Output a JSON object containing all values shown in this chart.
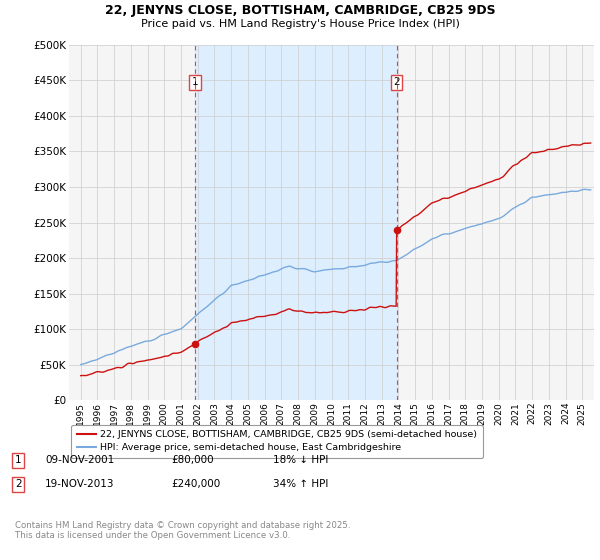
{
  "title1": "22, JENYNS CLOSE, BOTTISHAM, CAMBRIDGE, CB25 9DS",
  "title2": "Price paid vs. HM Land Registry's House Price Index (HPI)",
  "ylim": [
    0,
    500000
  ],
  "yticks": [
    0,
    50000,
    100000,
    150000,
    200000,
    250000,
    300000,
    350000,
    400000,
    450000,
    500000
  ],
  "ytick_labels": [
    "£0",
    "£50K",
    "£100K",
    "£150K",
    "£200K",
    "£250K",
    "£300K",
    "£350K",
    "£400K",
    "£450K",
    "£500K"
  ],
  "sale1_x": 2001.86,
  "sale2_x": 2013.89,
  "sale1_price": 80000,
  "sale2_price": 240000,
  "vline_color": "#dd4444",
  "line_property_color": "#cc1111",
  "line_hpi_color": "#7aaadd",
  "shade_color": "#ddeeff",
  "legend_entry1": "22, JENYNS CLOSE, BOTTISHAM, CAMBRIDGE, CB25 9DS (semi-detached house)",
  "legend_entry2": "HPI: Average price, semi-detached house, East Cambridgeshire",
  "footer": "Contains HM Land Registry data © Crown copyright and database right 2025.\nThis data is licensed under the Open Government Licence v3.0.",
  "background_color": "#f5f5f5",
  "xstart": 1995,
  "xend": 2025,
  "xlim_left": 1994.3,
  "xlim_right": 2025.7
}
